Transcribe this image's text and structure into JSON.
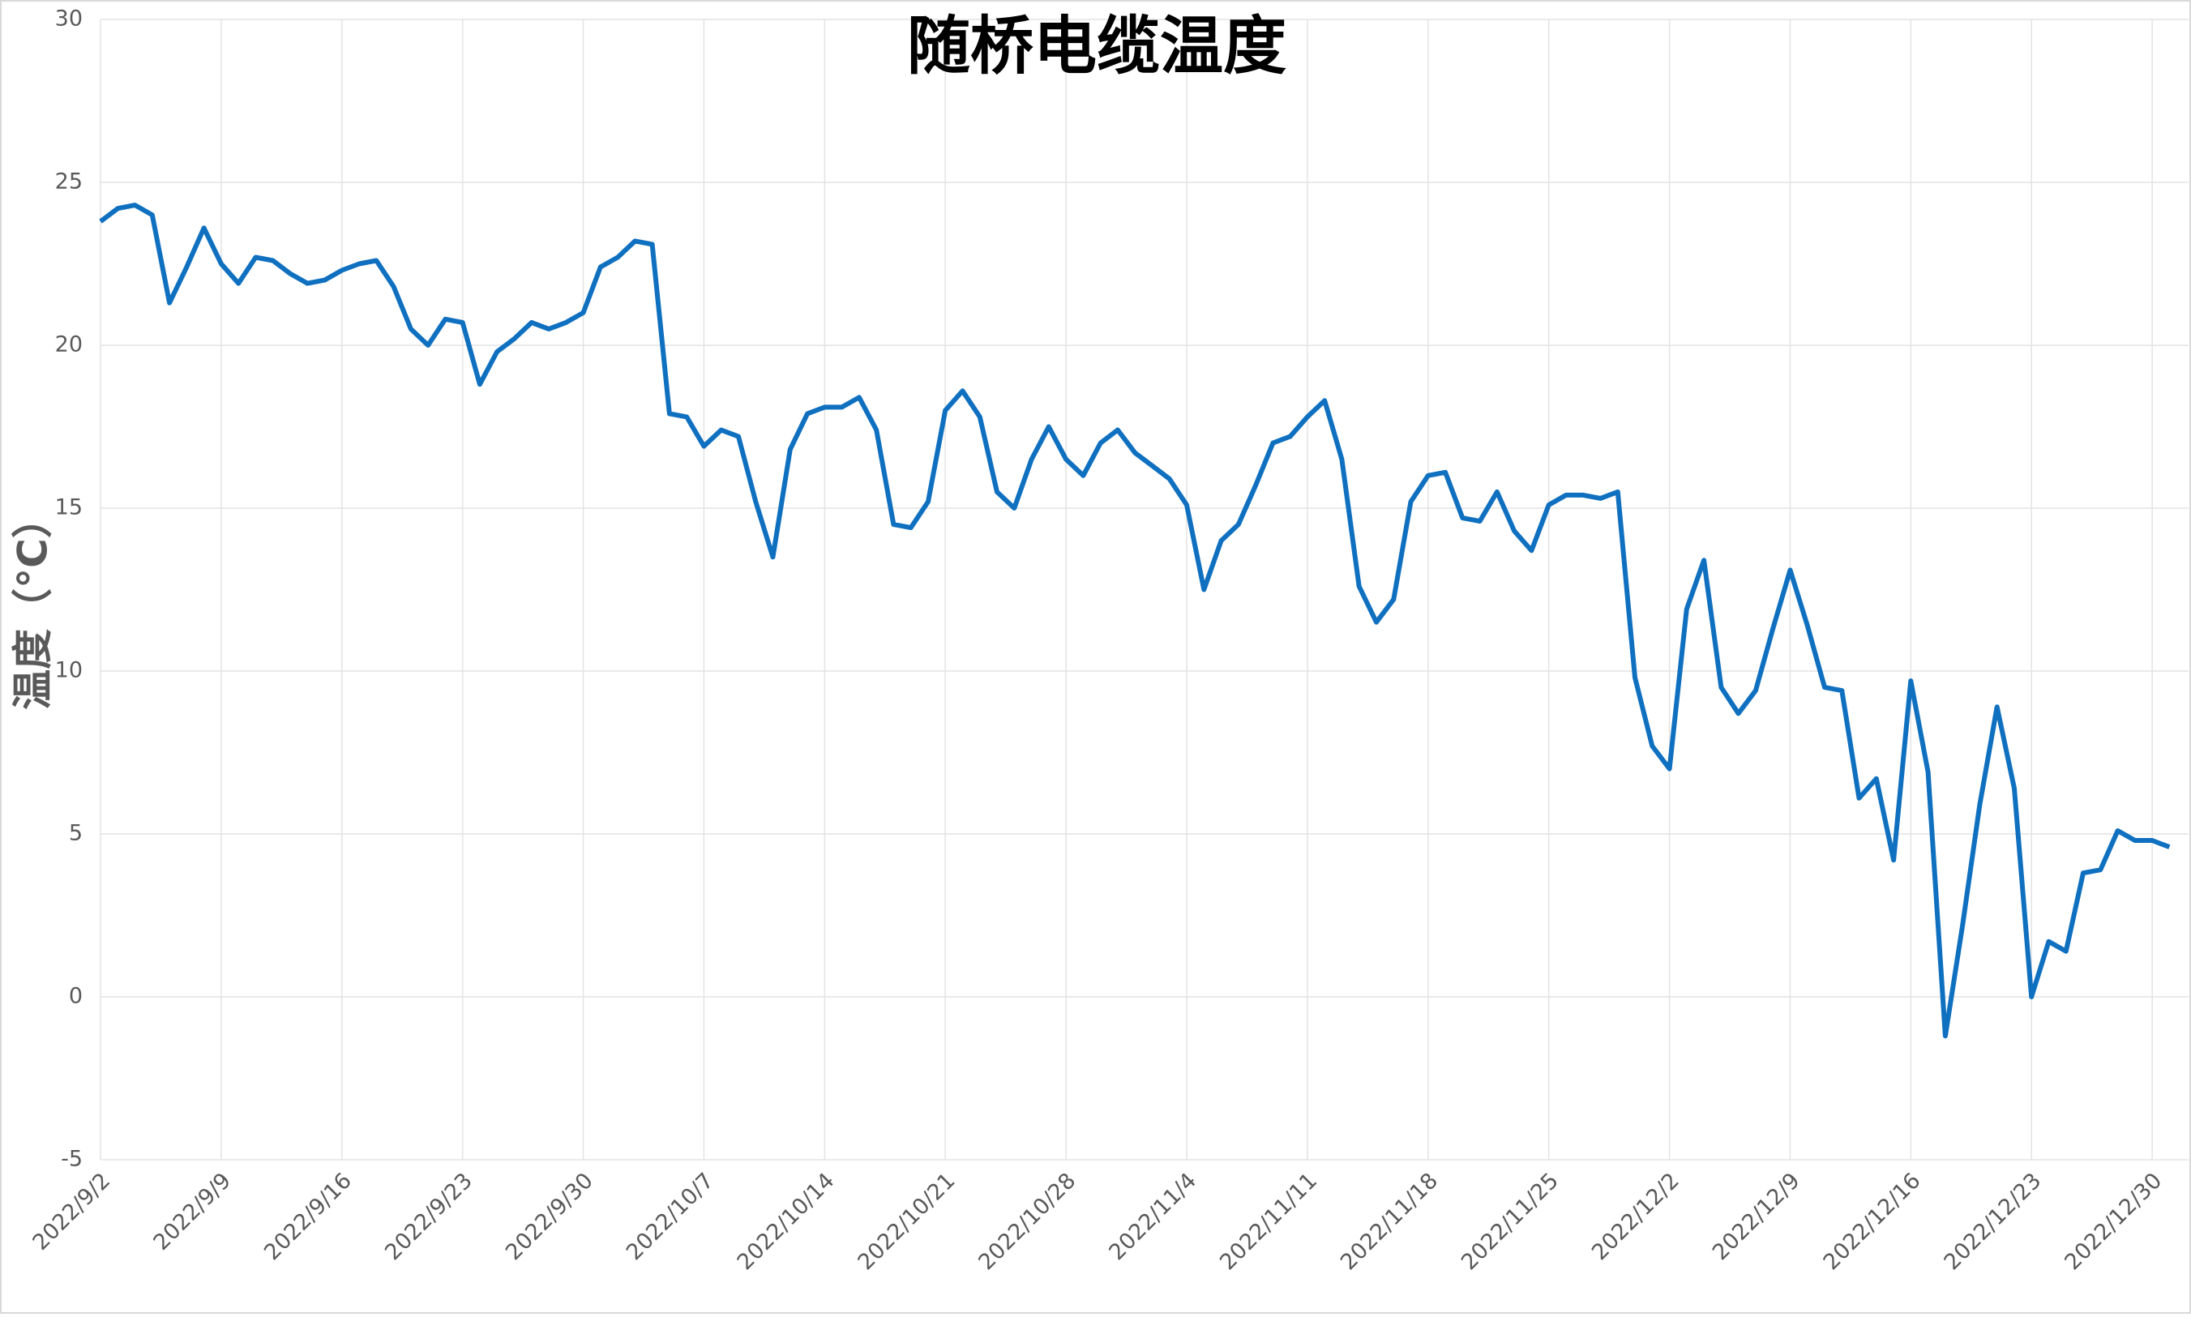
{
  "chart_data": {
    "type": "line",
    "title": "随桥电缆温度",
    "y_label": "温度（°C）",
    "categories": [
      "2022/9/2",
      null,
      null,
      null,
      null,
      null,
      null,
      "2022/9/9",
      null,
      null,
      null,
      null,
      null,
      null,
      "2022/9/16",
      null,
      null,
      null,
      null,
      null,
      null,
      "2022/9/23",
      null,
      null,
      null,
      null,
      null,
      null,
      "2022/9/30",
      null,
      null,
      null,
      null,
      null,
      null,
      "2022/10/7",
      null,
      null,
      null,
      null,
      null,
      null,
      "2022/10/14",
      null,
      null,
      null,
      null,
      null,
      null,
      "2022/10/21",
      null,
      null,
      null,
      null,
      null,
      null,
      "2022/10/28",
      null,
      null,
      null,
      null,
      null,
      null,
      "2022/11/4",
      null,
      null,
      null,
      null,
      null,
      null,
      "2022/11/11",
      null,
      null,
      null,
      null,
      null,
      null,
      "2022/11/18",
      null,
      null,
      null,
      null,
      null,
      null,
      "2022/11/25",
      null,
      null,
      null,
      null,
      null,
      null,
      "2022/12/2",
      null,
      null,
      null,
      null,
      null,
      null,
      "2022/12/9",
      null,
      null,
      null,
      null,
      null,
      null,
      "2022/12/16",
      null,
      null,
      null,
      null,
      null,
      null,
      "2022/12/23",
      null,
      null,
      null,
      null,
      null,
      null,
      "2022/12/30",
      null
    ],
    "series": [
      {
        "name": "温度",
        "color": "#1070c0",
        "values": [
          23.8,
          24.2,
          24.3,
          24.0,
          21.3,
          22.4,
          23.6,
          22.5,
          21.9,
          22.7,
          22.6,
          22.2,
          21.9,
          22.0,
          22.3,
          22.5,
          22.6,
          21.8,
          20.5,
          20.0,
          20.8,
          20.7,
          18.8,
          19.8,
          20.2,
          20.7,
          20.5,
          20.7,
          21.0,
          22.4,
          22.7,
          23.2,
          23.1,
          17.9,
          17.8,
          16.9,
          17.4,
          17.2,
          15.2,
          13.5,
          16.8,
          17.9,
          18.1,
          18.1,
          18.4,
          17.4,
          14.5,
          14.4,
          15.2,
          18.0,
          18.6,
          17.8,
          15.5,
          15.0,
          16.5,
          17.5,
          16.5,
          16.0,
          17.0,
          17.4,
          16.7,
          16.3,
          15.9,
          15.1,
          12.5,
          14.0,
          14.5,
          15.7,
          17.0,
          17.2,
          17.8,
          18.3,
          16.5,
          12.6,
          11.5,
          12.2,
          15.2,
          16.0,
          16.1,
          14.7,
          14.6,
          15.5,
          14.3,
          13.7,
          15.1,
          15.4,
          15.4,
          15.3,
          15.5,
          9.8,
          7.7,
          7.0,
          11.9,
          13.4,
          9.5,
          8.7,
          9.4,
          11.3,
          13.1,
          11.4,
          9.5,
          9.4,
          6.1,
          6.7,
          4.2,
          9.7,
          6.9,
          -1.2,
          2.2,
          5.9,
          8.9,
          6.4,
          0.0,
          1.7,
          1.4,
          3.8,
          3.9,
          5.1,
          4.8,
          4.8,
          4.6
        ]
      }
    ],
    "ylim": [
      -5,
      30
    ],
    "yticks": [
      -5,
      0,
      5,
      10,
      15,
      20,
      25,
      30
    ],
    "grid": true
  }
}
